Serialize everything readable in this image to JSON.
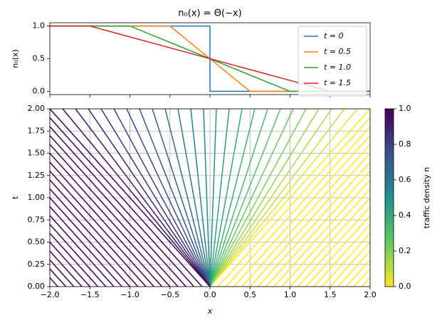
{
  "chart_data": [
    {
      "type": "line",
      "title": "n₀(x) = Θ(−x)",
      "y_label": "n₀(x)",
      "xlim": [
        -2,
        2
      ],
      "ylim": [
        -0.05,
        1.05
      ],
      "xticks": [
        -2,
        -1.5,
        -1,
        -0.5,
        0,
        0.5,
        1,
        1.5,
        2
      ],
      "yticks": [
        {
          "value": 0,
          "label": "0.0"
        },
        {
          "value": 0.5,
          "label": "0.5"
        },
        {
          "value": 1,
          "label": "1.0"
        }
      ],
      "grid": false,
      "legend": "upper-right",
      "series": [
        {
          "name": "t = 0",
          "color": "#1f77b4",
          "x": [
            -2,
            0,
            0,
            2
          ],
          "values": [
            1,
            1,
            0,
            0
          ]
        },
        {
          "name": "t = 0.5",
          "color": "#ff7f0e",
          "x": [
            -2,
            -0.5,
            0.5,
            2
          ],
          "values": [
            1,
            1,
            0,
            0
          ]
        },
        {
          "name": "t = 1.0",
          "color": "#2ca02c",
          "x": [
            -2,
            -1,
            1,
            2
          ],
          "values": [
            1,
            1,
            0,
            0
          ]
        },
        {
          "name": "t = 1.5",
          "color": "#d62728",
          "x": [
            -2,
            -1.5,
            1.5,
            2
          ],
          "values": [
            1,
            1,
            0,
            0
          ]
        }
      ]
    },
    {
      "type": "characteristics",
      "x_label": "x",
      "y_label": "t",
      "xlim": [
        -2,
        2
      ],
      "ylim": [
        0,
        2
      ],
      "grid": true,
      "colormap": "viridis_r",
      "xticks": [
        {
          "value": -2,
          "label": "−2.0"
        },
        {
          "value": -1.5,
          "label": "−1.5"
        },
        {
          "value": -1,
          "label": "−1.0"
        },
        {
          "value": -0.5,
          "label": "−0.5"
        },
        {
          "value": 0,
          "label": "0.0"
        },
        {
          "value": 0.5,
          "label": "0.5"
        },
        {
          "value": 1,
          "label": "1.0"
        },
        {
          "value": 1.5,
          "label": "1.5"
        },
        {
          "value": 2,
          "label": "2.0"
        }
      ],
      "yticks": [
        {
          "value": 0,
          "label": "0.00"
        },
        {
          "value": 0.25,
          "label": "0.25"
        },
        {
          "value": 0.5,
          "label": "0.50"
        },
        {
          "value": 0.75,
          "label": "0.75"
        },
        {
          "value": 1,
          "label": "1.00"
        },
        {
          "value": 1.25,
          "label": "1.25"
        },
        {
          "value": 1.5,
          "label": "1.50"
        },
        {
          "value": 1.75,
          "label": "1.75"
        },
        {
          "value": 2,
          "label": "2.00"
        }
      ],
      "x0": [
        -2,
        -1.9,
        -1.8,
        -1.7,
        -1.6,
        -1.5,
        -1.4,
        -1.3,
        -1.2,
        -1.1,
        -1,
        -0.9,
        -0.8,
        -0.7,
        -0.6,
        -0.5,
        -0.4,
        -0.3,
        -0.2,
        -0.1,
        0,
        0,
        0,
        0,
        0,
        0,
        0,
        0,
        0,
        0,
        0,
        0,
        0,
        0,
        0,
        0,
        0,
        0,
        0,
        0,
        0,
        0,
        0,
        0,
        0,
        0,
        0.1,
        0.2,
        0.3,
        0.4,
        0.5,
        0.6,
        0.7,
        0.8,
        0.9,
        1,
        1.1,
        1.2,
        1.3,
        1.4,
        1.5,
        1.6,
        1.7,
        1.8,
        1.9,
        2
      ],
      "n": [
        1,
        1,
        1,
        1,
        1,
        1,
        1,
        1,
        1,
        1,
        1,
        1,
        1,
        1,
        1,
        1,
        1,
        1,
        1,
        1,
        0,
        0.04,
        0.08,
        0.12,
        0.16,
        0.2,
        0.24,
        0.28,
        0.32,
        0.36,
        0.4,
        0.44,
        0.48,
        0.52,
        0.56,
        0.6,
        0.64,
        0.68,
        0.72,
        0.76,
        0.8,
        0.84,
        0.88,
        0.92,
        0.96,
        1,
        0,
        0,
        0,
        0,
        0,
        0,
        0,
        0,
        0,
        0,
        0,
        0,
        0,
        0,
        0,
        0,
        0,
        0,
        0,
        0
      ],
      "colorbar": {
        "label": "traffic density n",
        "lim": [
          0,
          1
        ],
        "ticks": [
          {
            "value": 0,
            "label": "0.0"
          },
          {
            "value": 0.2,
            "label": "0.2"
          },
          {
            "value": 0.4,
            "label": "0.4"
          },
          {
            "value": 0.6,
            "label": "0.6"
          },
          {
            "value": 0.8,
            "label": "0.8"
          },
          {
            "value": 1,
            "label": "1.0"
          }
        ]
      }
    }
  ]
}
